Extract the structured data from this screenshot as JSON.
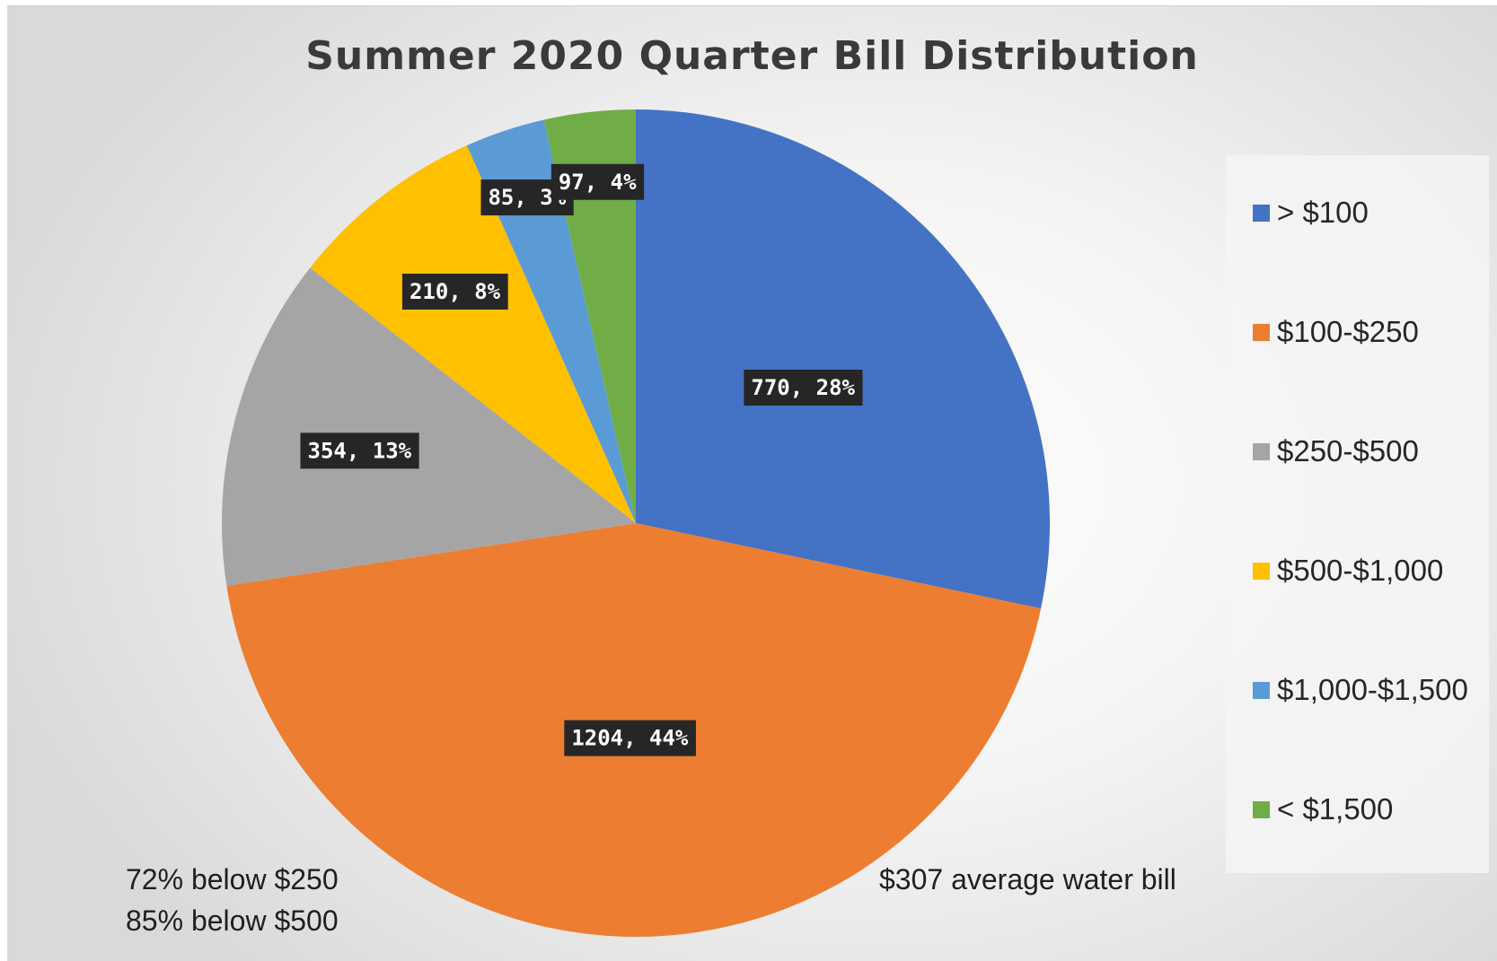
{
  "chart_data": {
    "type": "pie",
    "title": "Summer 2020 Quarter Bill Distribution",
    "slices": [
      {
        "name": "> $100",
        "value": 770,
        "percent": 28,
        "label": "770, 28%",
        "color": "#4472C4"
      },
      {
        "name": "$100-$250",
        "value": 1204,
        "percent": 44,
        "label": "1204, 44%",
        "color": "#ED7D31"
      },
      {
        "name": "$250-$500",
        "value": 354,
        "percent": 13,
        "label": "354, 13%",
        "color": "#A5A5A5"
      },
      {
        "name": "$500-$1,000",
        "value": 210,
        "percent": 8,
        "label": "210, 8%",
        "color": "#FFC000"
      },
      {
        "name": "$1,000-$1,500",
        "value": 85,
        "percent": 3,
        "label": "85, 3%",
        "color": "#5B9BD5"
      },
      {
        "name": "< $1,500",
        "value": 97,
        "percent": 4,
        "label": "97, 4%",
        "color": "#70AD47"
      }
    ],
    "legend_position": "right",
    "annotations": {
      "left_line1": "72% below $250",
      "left_line2": "85% below $500",
      "right": "$307 average water bill"
    }
  }
}
